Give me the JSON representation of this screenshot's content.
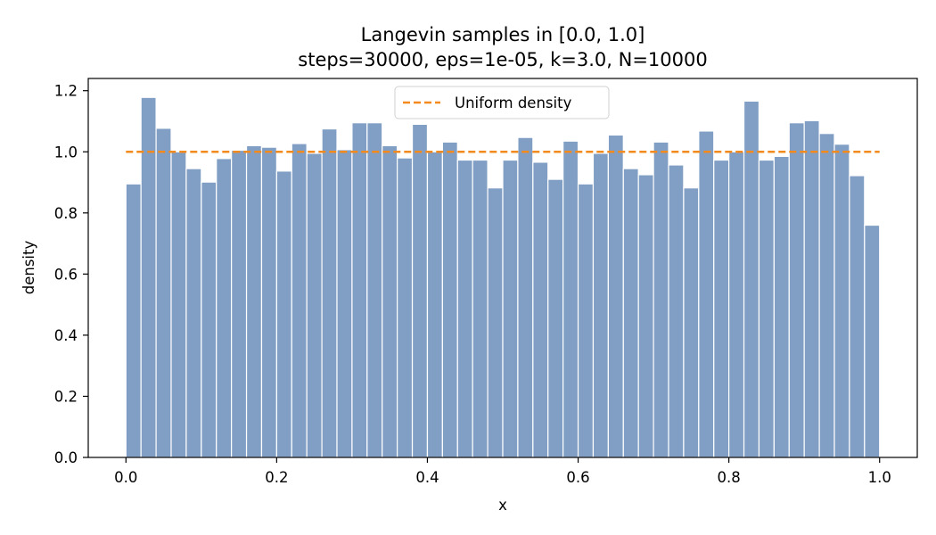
{
  "chart_data": {
    "type": "bar",
    "title_lines": [
      "Langevin samples in [0.0, 1.0]",
      "steps=30000, eps=1e-05, k=3.0, N=10000"
    ],
    "xlabel": "x",
    "ylabel": "density",
    "xlim": [
      -0.05,
      1.05
    ],
    "ylim": [
      0.0,
      1.24
    ],
    "xticks": [
      0.0,
      0.2,
      0.4,
      0.6,
      0.8,
      1.0
    ],
    "xtick_labels": [
      "0.0",
      "0.2",
      "0.4",
      "0.6",
      "0.8",
      "1.0"
    ],
    "yticks": [
      0.0,
      0.2,
      0.4,
      0.6,
      0.8,
      1.0,
      1.2
    ],
    "ytick_labels": [
      "0.0",
      "0.2",
      "0.4",
      "0.6",
      "0.8",
      "1.0",
      "1.2"
    ],
    "bin_edges_range": [
      0.0,
      1.0
    ],
    "bin_count": 50,
    "values": [
      0.895,
      1.178,
      1.077,
      1.0,
      0.945,
      0.901,
      0.978,
      1.005,
      1.02,
      1.015,
      0.937,
      1.027,
      0.995,
      1.075,
      1.007,
      1.095,
      1.095,
      1.02,
      0.98,
      1.09,
      1.0,
      1.032,
      0.973,
      0.973,
      0.882,
      0.973,
      1.047,
      0.966,
      0.91,
      1.035,
      0.895,
      0.995,
      1.055,
      0.945,
      0.925,
      1.032,
      0.957,
      0.882,
      1.068,
      0.973,
      1.0,
      1.166,
      0.973,
      0.985,
      1.095,
      1.102,
      1.06,
      1.025,
      0.922,
      0.76
    ],
    "bar_color": "#819fc4",
    "bar_edge_color": "#ffffff",
    "reference_line": {
      "name": "Uniform density",
      "y": 1.0,
      "x_range": [
        0.0,
        1.0
      ],
      "color": "#f28a1e",
      "style": "dashed"
    },
    "legend": {
      "position": "top-center",
      "entries": [
        "Uniform density"
      ]
    },
    "grid": false
  }
}
